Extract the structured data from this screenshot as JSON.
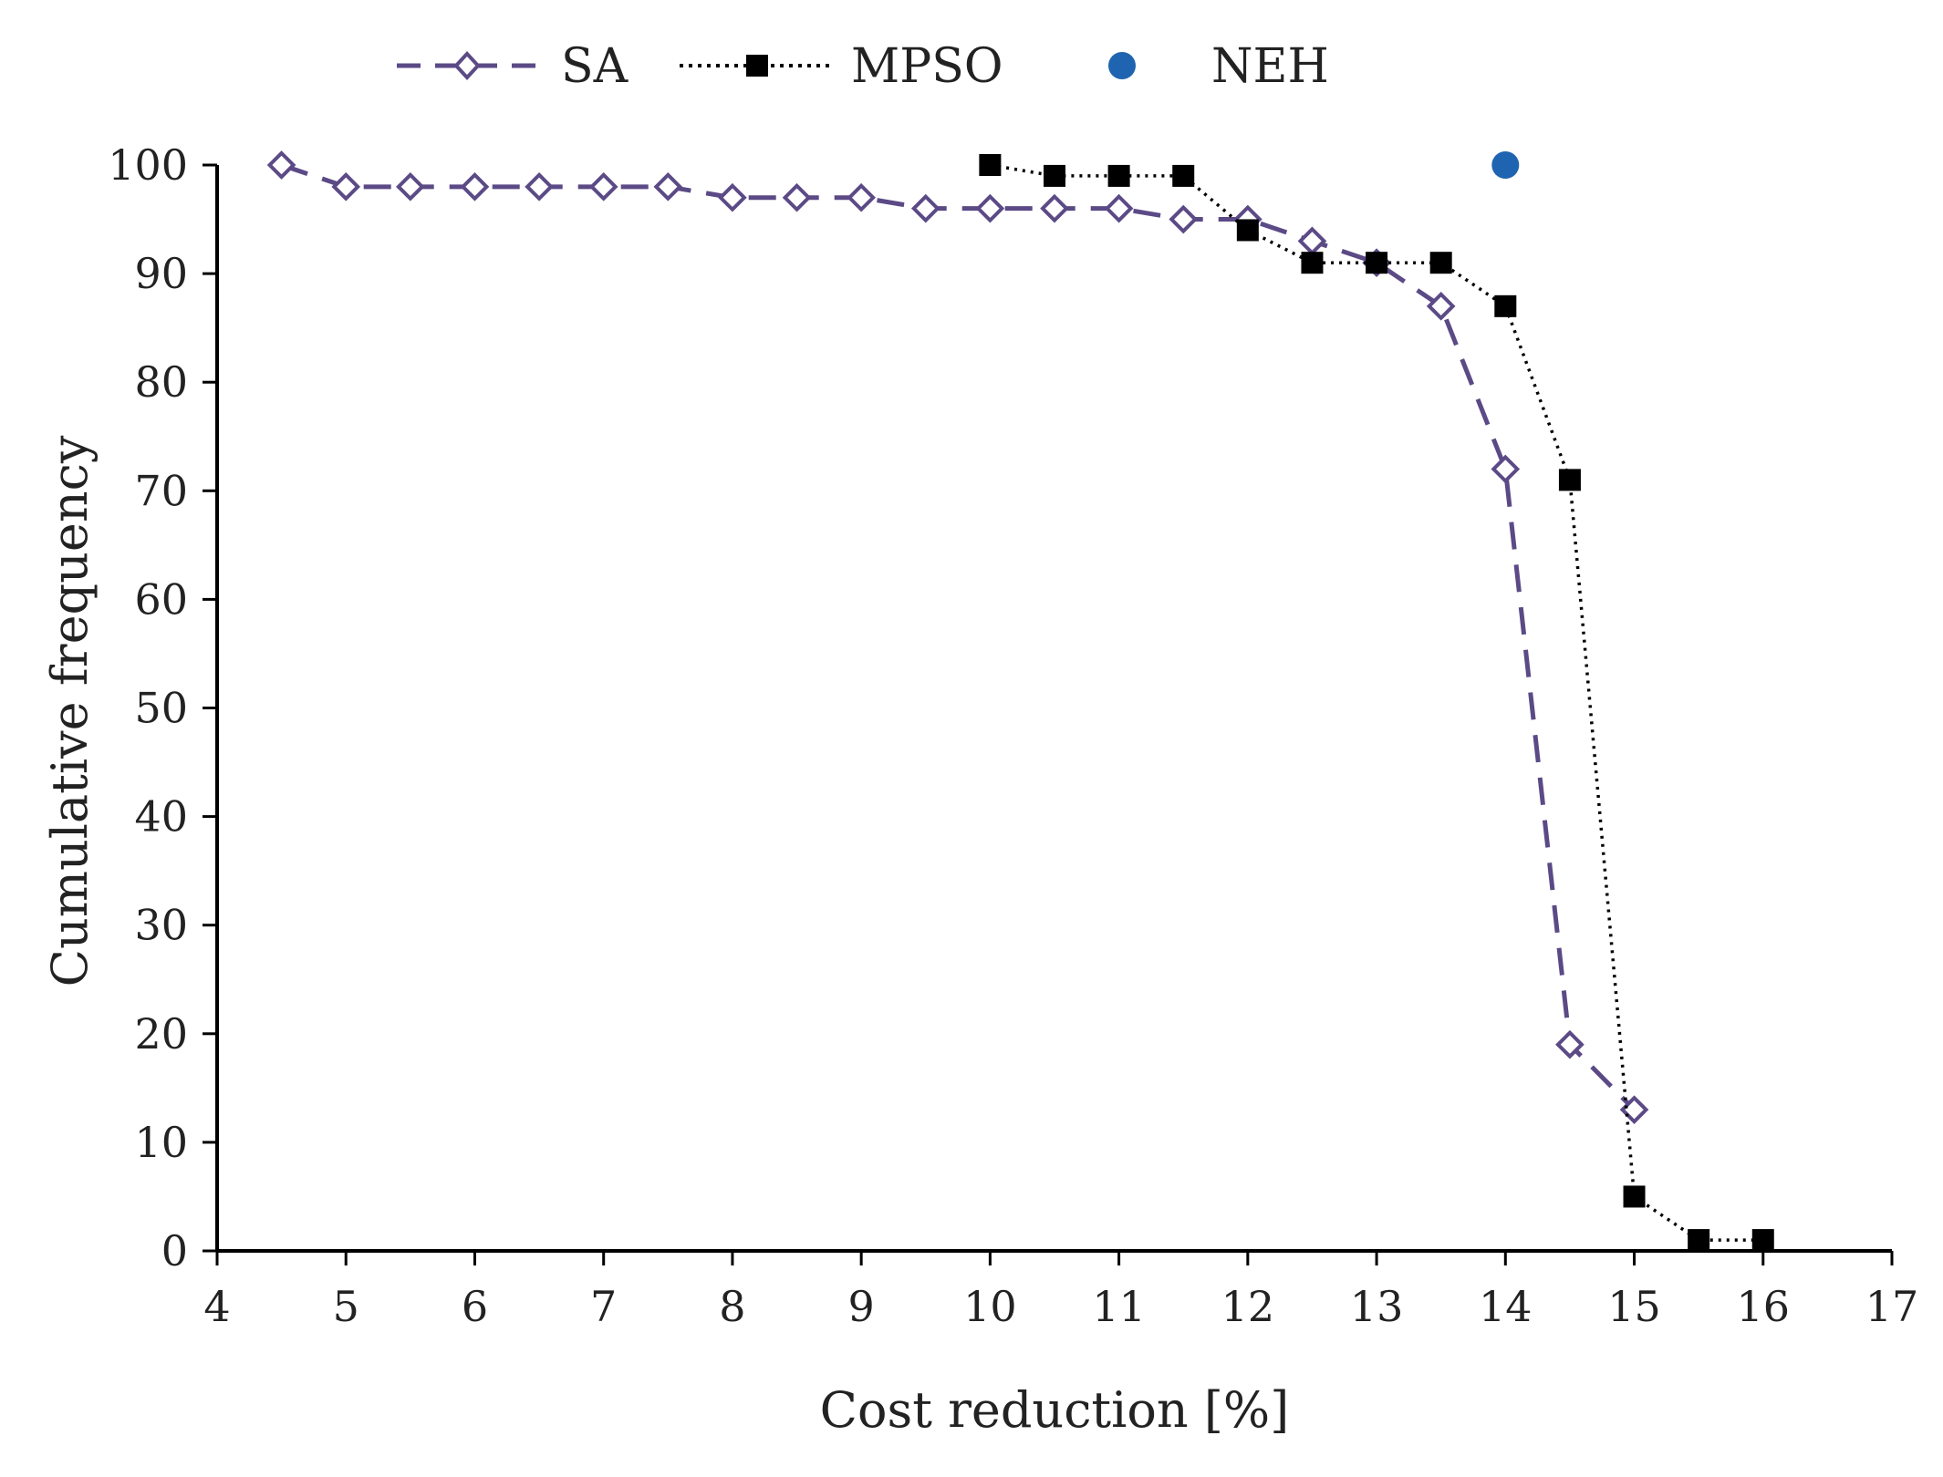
{
  "chart_data": {
    "type": "line",
    "title": "",
    "xlabel": "Cost reduction [%]",
    "ylabel": "Cumulative frequency",
    "xlim": [
      4,
      17
    ],
    "ylim": [
      0,
      100
    ],
    "xticks": [
      4,
      5,
      6,
      7,
      8,
      9,
      10,
      11,
      12,
      13,
      14,
      15,
      16,
      17
    ],
    "yticks": [
      0,
      10,
      20,
      30,
      40,
      50,
      60,
      70,
      80,
      90,
      100
    ],
    "grid": false,
    "legend_position": "top",
    "series": [
      {
        "name": "SA",
        "color": "#5b4a86",
        "line_style": "dashed",
        "marker": "open-diamond",
        "x": [
          4.5,
          5,
          5.5,
          6,
          6.5,
          7,
          7.5,
          8,
          8.5,
          9,
          9.5,
          10,
          10.5,
          11,
          11.5,
          12,
          12.5,
          13,
          13.5,
          14,
          14.5,
          15
        ],
        "y": [
          100,
          98,
          98,
          98,
          98,
          98,
          98,
          97,
          97,
          97,
          96,
          96,
          96,
          96,
          95,
          95,
          93,
          91,
          87,
          72,
          19,
          13
        ]
      },
      {
        "name": "MPSO",
        "color": "#000000",
        "line_style": "dotted",
        "marker": "filled-square",
        "x": [
          10,
          10.5,
          11,
          11.5,
          12,
          12.5,
          13,
          13.5,
          14,
          14.5,
          15,
          15.5,
          16
        ],
        "y": [
          100,
          99,
          99,
          99,
          94,
          91,
          91,
          91,
          87,
          71,
          5,
          1,
          1
        ]
      },
      {
        "name": "NEH",
        "color": "#1f64b0",
        "line_style": "none",
        "marker": "filled-circle",
        "x": [
          14
        ],
        "y": [
          100
        ]
      }
    ]
  }
}
